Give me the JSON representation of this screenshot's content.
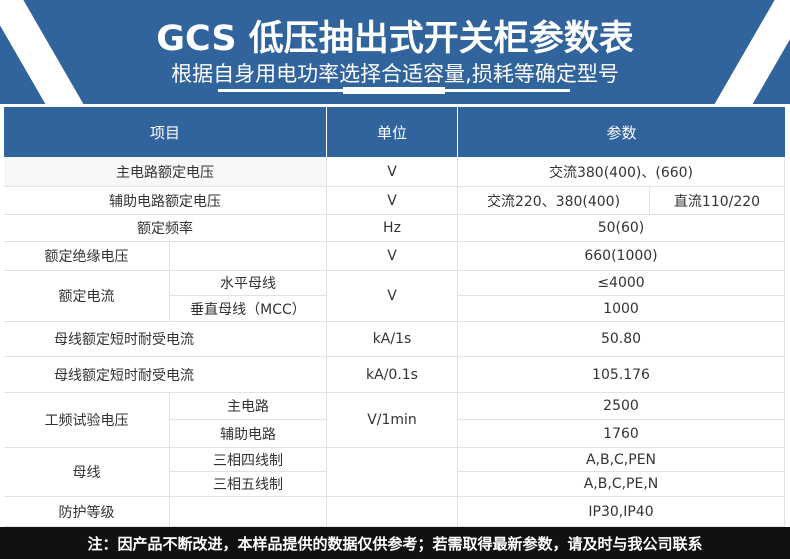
{
  "title": "GCS 低压抽出式开关柜参数表",
  "subtitle": "根据自身用电功率选择合适容量,损耗等确定型号",
  "headers": {
    "item": "项目",
    "unit": "单位",
    "param": "参数"
  },
  "rows": {
    "r1": {
      "item": "主电路额定电压",
      "unit": "V",
      "param": "交流380(400)、(660)"
    },
    "r2": {
      "item": "辅助电路额定电压",
      "unit": "V",
      "param_ac": "交流220、380(400)",
      "param_dc": "直流110/220"
    },
    "r3": {
      "item": "额定频率",
      "unit": "Hz",
      "param": "50(60)"
    },
    "r4": {
      "item": "额定绝缘电压",
      "unit": "V",
      "param": "660(1000)"
    },
    "r5": {
      "item": "额定电流",
      "unit": "V",
      "sub1": "水平母线",
      "param1": "≤4000",
      "sub2": "垂直母线（MCC）",
      "param2": "1000"
    },
    "r6": {
      "item": "母线额定短时耐受电流",
      "unit": "kA/1s",
      "param": "50.80"
    },
    "r7": {
      "item": "母线额定短时耐受电流",
      "unit": "kA/0.1s",
      "param": "105.176"
    },
    "r8": {
      "item": "工频试验电压",
      "unit": "V/1min",
      "sub1": "主电路",
      "param1": "2500",
      "sub2": "辅助电路",
      "param2": "1760"
    },
    "r9": {
      "item": "母线",
      "sub1": "三相四线制",
      "param1": "A,B,C,PEN",
      "sub2": "三相五线制",
      "param2": "A,B,C,PE,N"
    },
    "r10": {
      "item": "防护等级",
      "param": "IP30,IP40"
    }
  },
  "footer": "注：因产品不断改进，本样品提供的数据仅供参考；若需取得最新参数，请及时与我公司联系",
  "colors": {
    "brand": "#31649c",
    "footer": "#111111"
  }
}
